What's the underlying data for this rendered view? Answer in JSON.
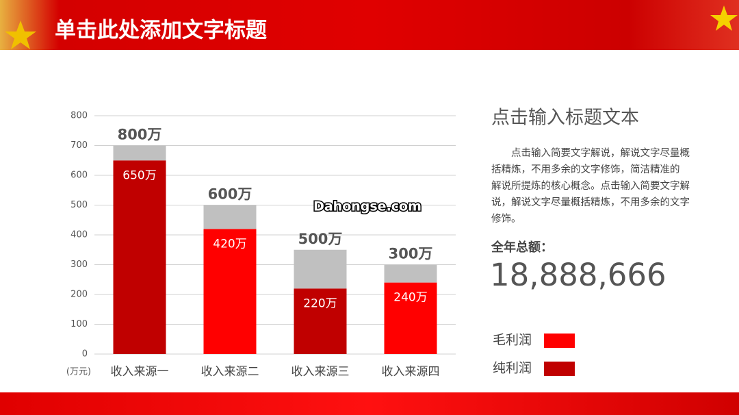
{
  "header": {
    "title": "单击此处添加文字标题"
  },
  "watermark": "Dahongse.com",
  "chart_data": {
    "type": "stacked_bar",
    "categories": [
      "收入来源一",
      "收入来源二",
      "收入来源三",
      "收入来源四"
    ],
    "unit_label": "(万元)",
    "series": [
      {
        "name": "毛利润",
        "color": "#ff0000",
        "values": [
          null,
          420,
          null,
          240
        ],
        "value_labels": [
          null,
          "420万",
          null,
          "240万"
        ]
      },
      {
        "name": "纯利润",
        "color": "#c00000",
        "values": [
          650,
          null,
          220,
          null
        ],
        "value_labels": [
          "650万",
          null,
          "220万",
          null
        ]
      },
      {
        "color": "#c0c0c0",
        "values": [
          50,
          80,
          130,
          60
        ]
      }
    ],
    "top_labels": [
      "800万",
      "600万",
      "500万",
      "300万"
    ],
    "ylim": [
      0,
      800
    ],
    "yticks": [
      0,
      100,
      200,
      300,
      400,
      500,
      600,
      700,
      800
    ],
    "grid": true
  },
  "side": {
    "heading": "点击输入标题文本",
    "paragraph": "点击输入简要文字解说，解说文字尽量概括精炼，不用多余的文字修饰，简洁精准的 解说所提炼的核心概念。点击输入简要文字解说，解说文字尽量概括精炼，不用多余的文字修饰。",
    "total_label": "全年总额：",
    "total_value": "18,888,666"
  }
}
